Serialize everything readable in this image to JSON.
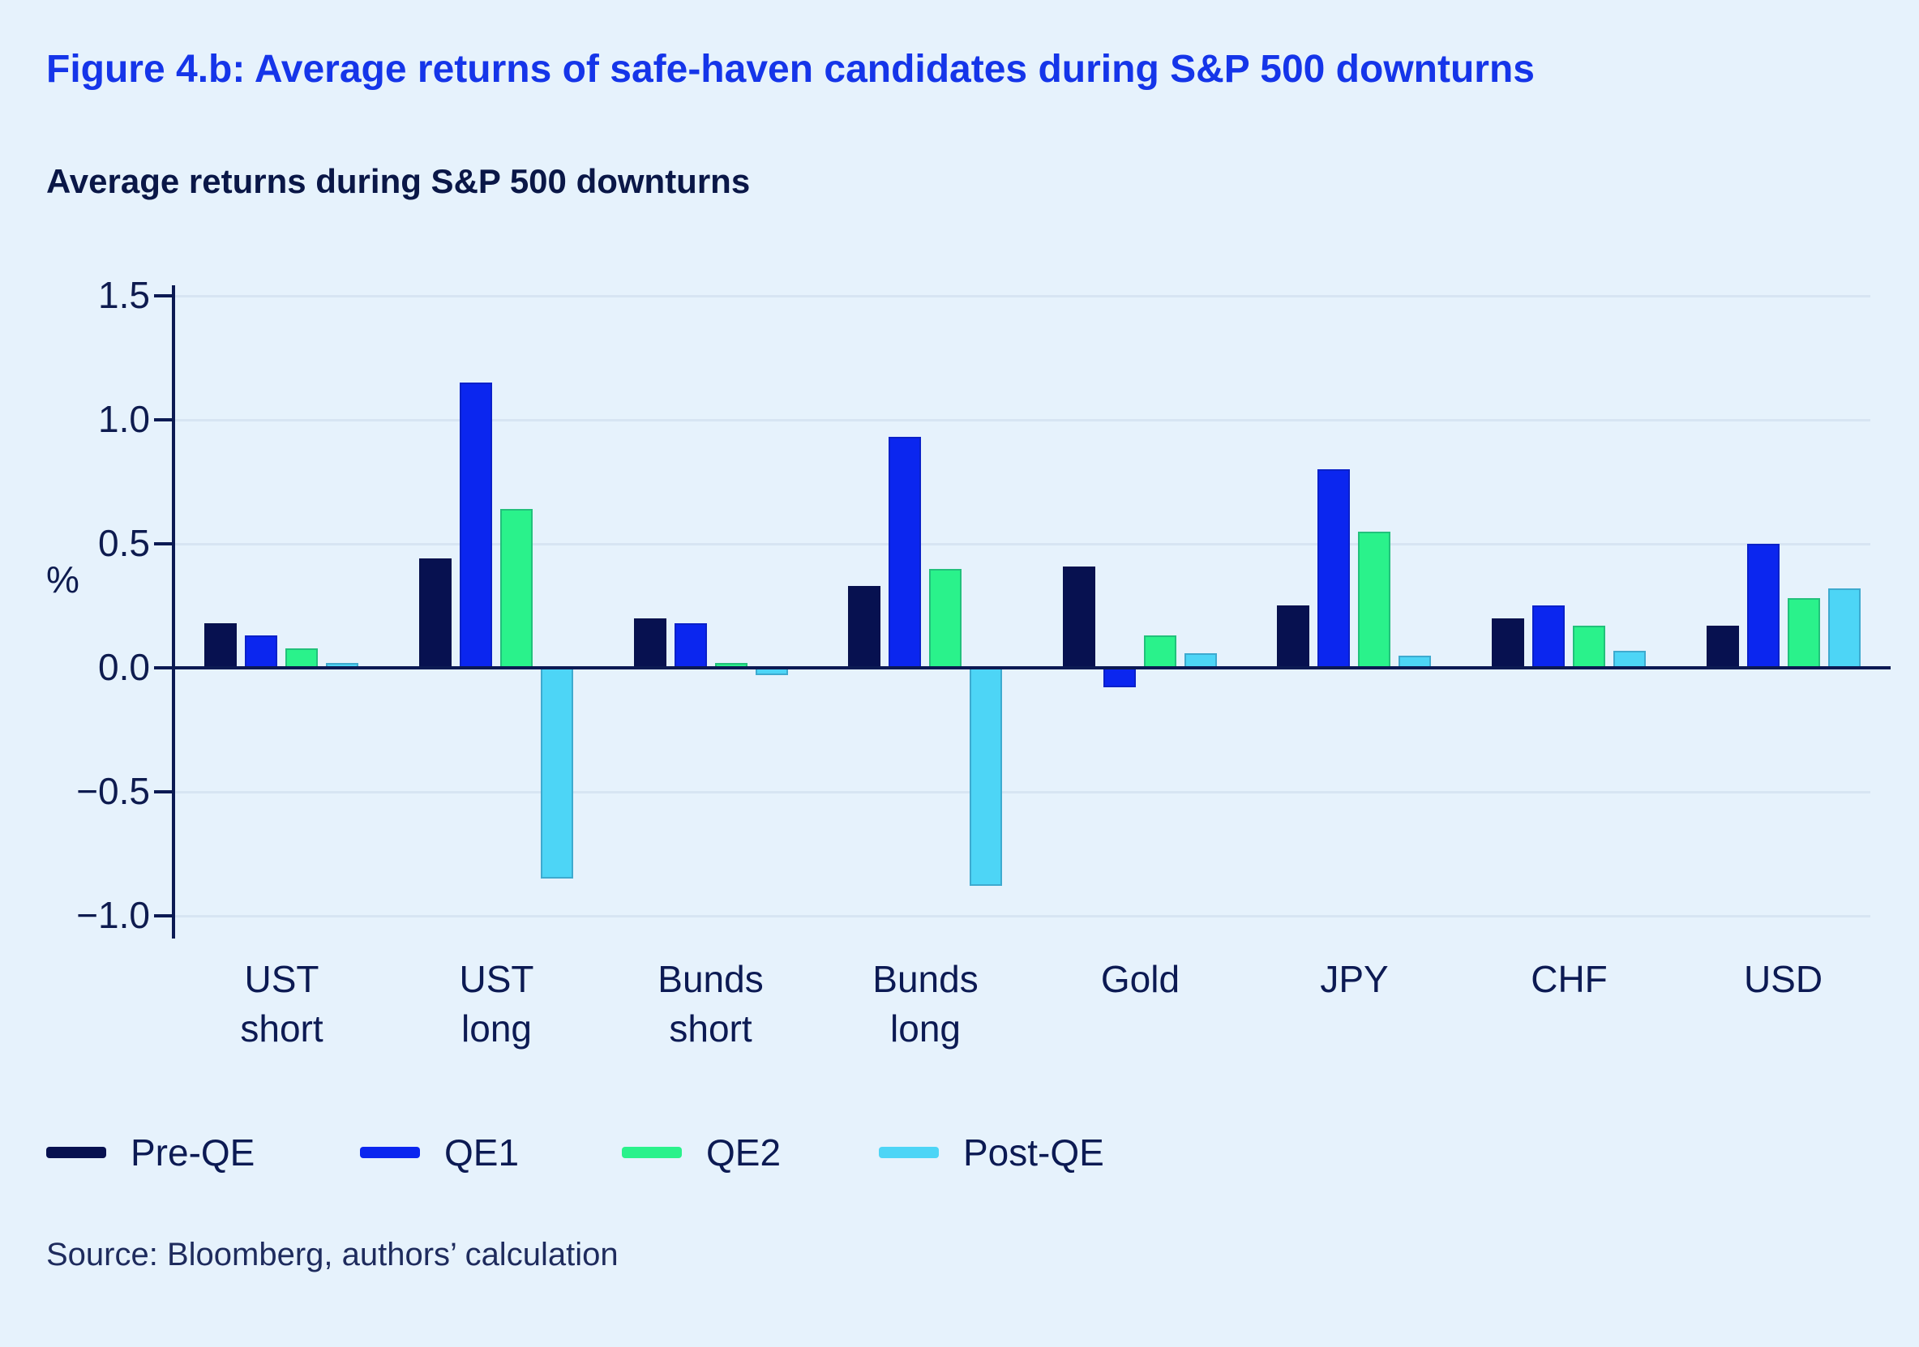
{
  "page": {
    "title": "Figure 4.b: Average returns of safe-haven candidates during S&P 500 downturns",
    "subtitle": "Average returns during S&P 500 downturns",
    "source": "Source: Bloomberg, authors’ calculation"
  },
  "chart_data": {
    "type": "bar",
    "title": "Average returns during S&P 500 downturns",
    "xlabel": "",
    "ylabel": "%",
    "ylim": [
      -1.1,
      1.5
    ],
    "ytick_labels": [
      "1.5",
      "1.0",
      "0.5",
      "0.0",
      "−0.5",
      "−1.0"
    ],
    "ytick_values": [
      1.5,
      1.0,
      0.5,
      0.0,
      -0.5,
      -1.0
    ],
    "grid": true,
    "legend_position": "bottom",
    "categories": [
      "UST short",
      "UST long",
      "Bunds short",
      "Bunds long",
      "Gold",
      "JPY",
      "CHF",
      "USD"
    ],
    "category_lines": [
      [
        "UST",
        "short"
      ],
      [
        "UST",
        "long"
      ],
      [
        "Bunds",
        "short"
      ],
      [
        "Bunds",
        "long"
      ],
      [
        "Gold"
      ],
      [
        "JPY"
      ],
      [
        "CHF"
      ],
      [
        "USD"
      ]
    ],
    "series": [
      {
        "name": "Pre-QE",
        "color": "#071150",
        "values": [
          0.18,
          0.44,
          0.2,
          0.33,
          0.41,
          0.25,
          0.2,
          0.17
        ]
      },
      {
        "name": "QE1",
        "color": "#0b26ef",
        "values": [
          0.13,
          1.15,
          0.18,
          0.93,
          -0.08,
          0.8,
          0.25,
          0.5
        ]
      },
      {
        "name": "QE2",
        "color": "#2af28b",
        "values": [
          0.08,
          0.64,
          0.02,
          0.4,
          0.13,
          0.55,
          0.17,
          0.28
        ]
      },
      {
        "name": "Post-QE",
        "color": "#4dd5f6",
        "values": [
          0.02,
          -0.85,
          -0.03,
          -0.88,
          0.06,
          0.05,
          0.07,
          0.32
        ]
      }
    ],
    "colors": {
      "background": "#e6f2fc",
      "title_accent": "#1535e9",
      "axis": "#0c1a53",
      "gridline": "#d7e5f3"
    }
  }
}
